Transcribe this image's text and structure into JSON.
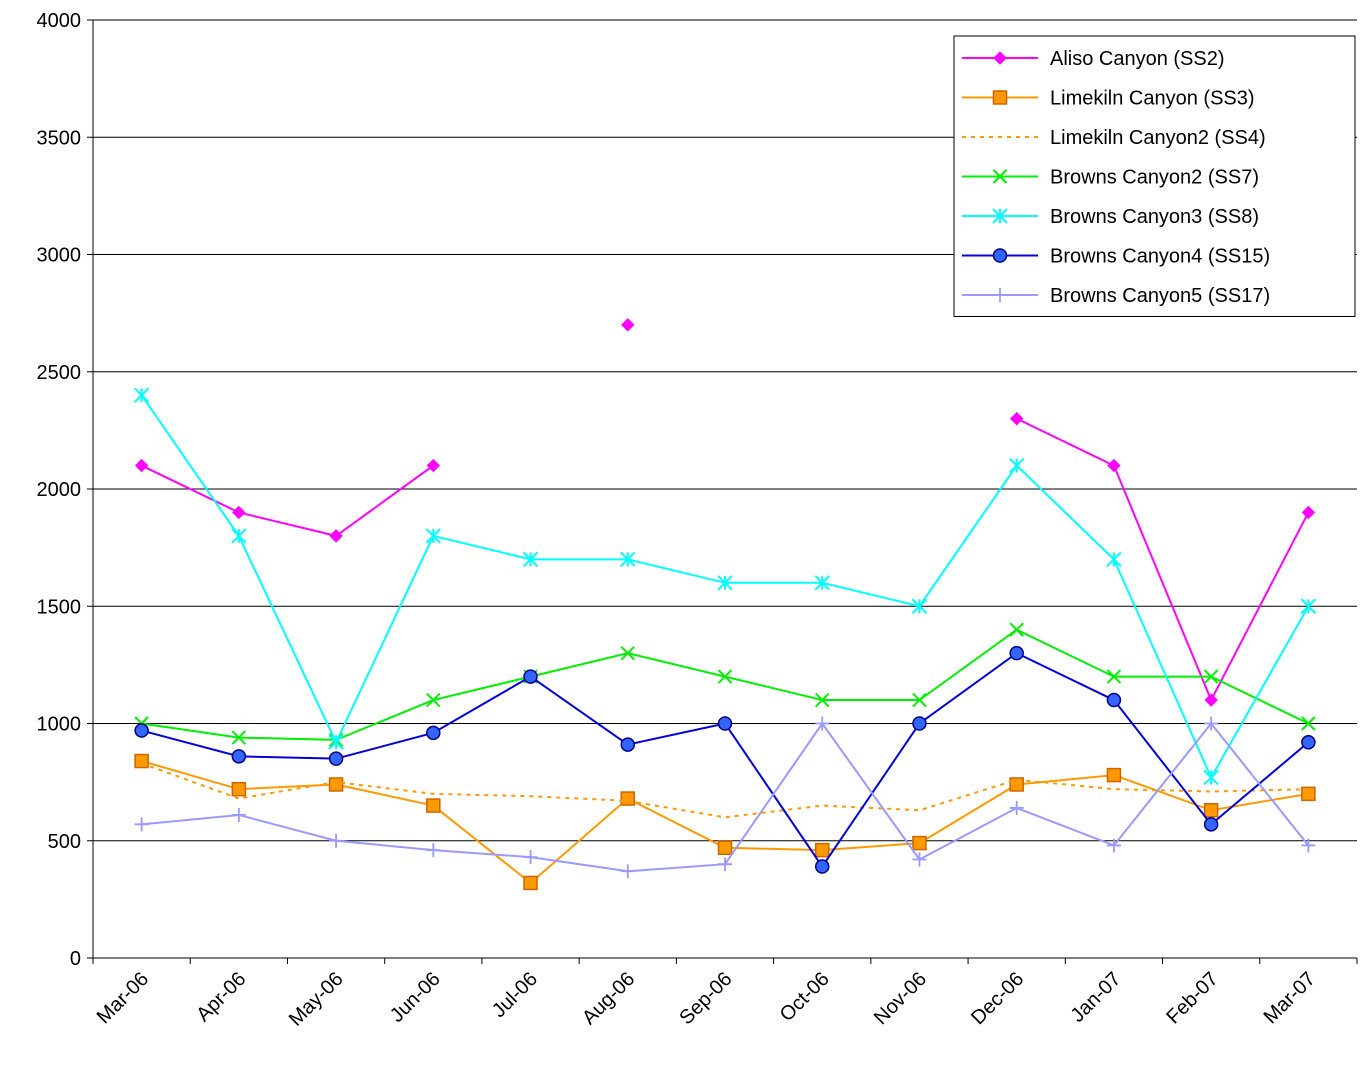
{
  "chart_data": {
    "type": "line",
    "title": "",
    "xlabel": "",
    "ylabel": "",
    "ylim": [
      0,
      4000
    ],
    "yticks": [
      "0",
      "500",
      "1000",
      "1500",
      "2000",
      "2500",
      "3000",
      "3500",
      "4000"
    ],
    "categories": [
      "Mar-06",
      "Apr-06",
      "May-06",
      "Jun-06",
      "Jul-06",
      "Aug-06",
      "Sep-06",
      "Oct-06",
      "Nov-06",
      "Dec-06",
      "Jan-07",
      "Feb-07",
      "Mar-07"
    ],
    "grid": "horizontal",
    "legend_position": "top-right",
    "series": [
      {
        "name": "Aliso Canyon (SS2)",
        "color": "#ff00ff",
        "marker": "diamond",
        "dash": "solid",
        "values": [
          2100,
          1900,
          1800,
          2100,
          null,
          2700,
          null,
          null,
          null,
          2300,
          2100,
          1100,
          1900
        ]
      },
      {
        "name": "Limekiln Canyon (SS3)",
        "color": "#ff9900",
        "marker": "square",
        "dash": "solid",
        "values": [
          840,
          720,
          740,
          650,
          320,
          680,
          470,
          460,
          490,
          740,
          780,
          630,
          700
        ]
      },
      {
        "name": "Limekiln Canyon2 (SS4)",
        "color": "#ff9900",
        "marker": "none",
        "dash": "dotted",
        "values": [
          830,
          680,
          750,
          700,
          690,
          670,
          600,
          650,
          630,
          760,
          720,
          710,
          720
        ]
      },
      {
        "name": "Browns Canyon2 (SS7)",
        "color": "#00ee00",
        "marker": "x",
        "dash": "solid",
        "values": [
          1000,
          940,
          930,
          1100,
          1200,
          1300,
          1200,
          1100,
          1100,
          1400,
          1200,
          1200,
          1000
        ]
      },
      {
        "name": "Browns Canyon3 (SS8)",
        "color": "#00ffff",
        "marker": "star",
        "dash": "solid",
        "values": [
          2400,
          1800,
          920,
          1800,
          1700,
          1700,
          1600,
          1600,
          1500,
          2100,
          1700,
          770,
          1500
        ]
      },
      {
        "name": "Browns Canyon4 (SS15)",
        "color": "#0000dd",
        "marker": "circle",
        "dash": "solid",
        "values": [
          970,
          860,
          850,
          960,
          1200,
          910,
          1000,
          390,
          1000,
          1300,
          1100,
          570,
          920
        ]
      },
      {
        "name": "Browns Canyon5 (SS17)",
        "color": "#9999ff",
        "marker": "plus",
        "dash": "solid",
        "values": [
          570,
          610,
          500,
          460,
          430,
          370,
          400,
          1000,
          420,
          640,
          480,
          1000,
          480
        ]
      }
    ]
  }
}
